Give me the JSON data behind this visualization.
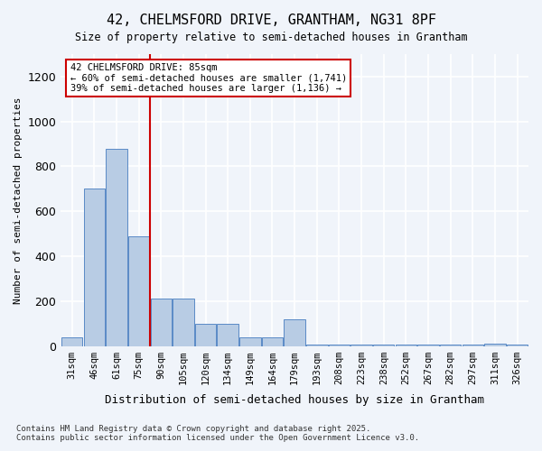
{
  "title1": "42, CHELMSFORD DRIVE, GRANTHAM, NG31 8PF",
  "title2": "Size of property relative to semi-detached houses in Grantham",
  "xlabel": "Distribution of semi-detached houses by size in Grantham",
  "ylabel": "Number of semi-detached properties",
  "categories": [
    "31sqm",
    "46sqm",
    "61sqm",
    "75sqm",
    "90sqm",
    "105sqm",
    "120sqm",
    "134sqm",
    "149sqm",
    "164sqm",
    "179sqm",
    "193sqm",
    "208sqm",
    "223sqm",
    "238sqm",
    "252sqm",
    "267sqm",
    "282sqm",
    "297sqm",
    "311sqm",
    "326sqm"
  ],
  "values": [
    40,
    700,
    880,
    490,
    210,
    210,
    100,
    100,
    40,
    40,
    120,
    5,
    5,
    5,
    5,
    5,
    5,
    5,
    5,
    10,
    5
  ],
  "bar_color": "#b8cce4",
  "bar_edge_color": "#5a8ac6",
  "property_sqm": 85,
  "property_bin_index": 3,
  "annotation_title": "42 CHELMSFORD DRIVE: 85sqm",
  "annotation_line1": "← 60% of semi-detached houses are smaller (1,741)",
  "annotation_line2": "39% of semi-detached houses are larger (1,136) →",
  "annotation_box_color": "#ffffff",
  "annotation_edge_color": "#cc0000",
  "vline_color": "#cc0000",
  "vline_x": 3.5,
  "ylim": [
    0,
    1300
  ],
  "footnote1": "Contains HM Land Registry data © Crown copyright and database right 2025.",
  "footnote2": "Contains public sector information licensed under the Open Government Licence v3.0.",
  "background_color": "#f0f4fa",
  "plot_bg_color": "#f0f4fa",
  "grid_color": "#ffffff"
}
